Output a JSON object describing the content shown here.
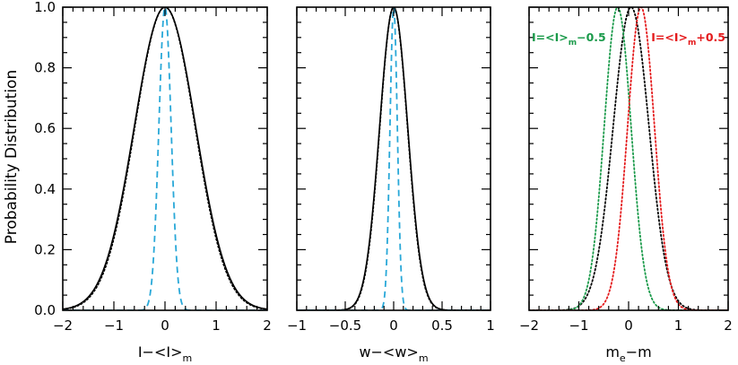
{
  "ylabel": "Probability Distribution",
  "chart_data": [
    {
      "type": "line",
      "xlabel": "I−<I>",
      "xlabel_sub": "m",
      "xlim": [
        -2,
        2
      ],
      "ylim": [
        0,
        1
      ],
      "xticks": [
        -2,
        -1,
        0,
        1,
        2
      ],
      "xtick_labels": [
        "−2",
        "−1",
        "0",
        "1",
        "2"
      ],
      "yticks": [
        0.0,
        0.2,
        0.4,
        0.6,
        0.8,
        1.0
      ],
      "ytick_labels": [
        "0.0",
        "0.2",
        "0.4",
        "0.6",
        "0.8",
        "1.0"
      ],
      "series": [
        {
          "style": "solid",
          "color": "#000000",
          "shape": "gaussian",
          "center": 0,
          "sigma": 0.6
        },
        {
          "style": "dotted",
          "color": "#000000",
          "shape": "gaussian",
          "center": 0,
          "sigma": 0.59
        },
        {
          "style": "dashed",
          "color": "#29a8d8",
          "shape": "gaussian",
          "center": 0,
          "sigma": 0.12
        }
      ],
      "annotations": []
    },
    {
      "type": "line",
      "xlabel": "w−<w>",
      "xlabel_sub": "m",
      "xlim": [
        -1,
        1
      ],
      "ylim": [
        0,
        1
      ],
      "xticks": [
        -1,
        -0.5,
        0,
        0.5,
        1
      ],
      "xtick_labels": [
        "−1",
        "−0.5",
        "0",
        "0.5",
        "1"
      ],
      "yticks": [
        0.0,
        0.2,
        0.4,
        0.6,
        0.8,
        1.0
      ],
      "ytick_labels": [],
      "series": [
        {
          "style": "solid",
          "color": "#000000",
          "shape": "gaussian",
          "center": 0,
          "sigma": 0.145
        },
        {
          "style": "dotted",
          "color": "#000000",
          "shape": "gaussian",
          "center": 0,
          "sigma": 0.143
        },
        {
          "style": "dashed",
          "color": "#29a8d8",
          "shape": "gaussian",
          "center": 0,
          "sigma": 0.038
        }
      ],
      "annotations": []
    },
    {
      "type": "line",
      "xlabel": "m",
      "xlabel_sub": "e",
      "xlabel_tail": "−m",
      "xlim": [
        -2,
        2
      ],
      "ylim": [
        0,
        1
      ],
      "xticks": [
        -2,
        -1,
        0,
        1,
        2
      ],
      "xtick_labels": [
        "−2",
        "−1",
        "0",
        "1",
        "2"
      ],
      "yticks": [
        0.0,
        0.2,
        0.4,
        0.6,
        0.8,
        1.0
      ],
      "ytick_labels": [],
      "series": [
        {
          "style": "dotted",
          "color": "#000000",
          "shape": "gaussian",
          "center": 0.05,
          "sigma": 0.36
        },
        {
          "style": "dotted",
          "color": "#1a9a4a",
          "shape": "gaussian",
          "center": -0.22,
          "sigma": 0.27
        },
        {
          "style": "dotted",
          "color": "#e41a1c",
          "shape": "gaussian",
          "center": 0.25,
          "sigma": 0.27
        }
      ],
      "annotations": [
        {
          "main": "I=<I>",
          "sub": "m",
          "tail": "−0.5",
          "color": "#1a9a4a",
          "side": "left"
        },
        {
          "main": "I=<I>",
          "sub": "m",
          "tail": "+0.5",
          "color": "#e41a1c",
          "side": "right"
        }
      ]
    }
  ]
}
